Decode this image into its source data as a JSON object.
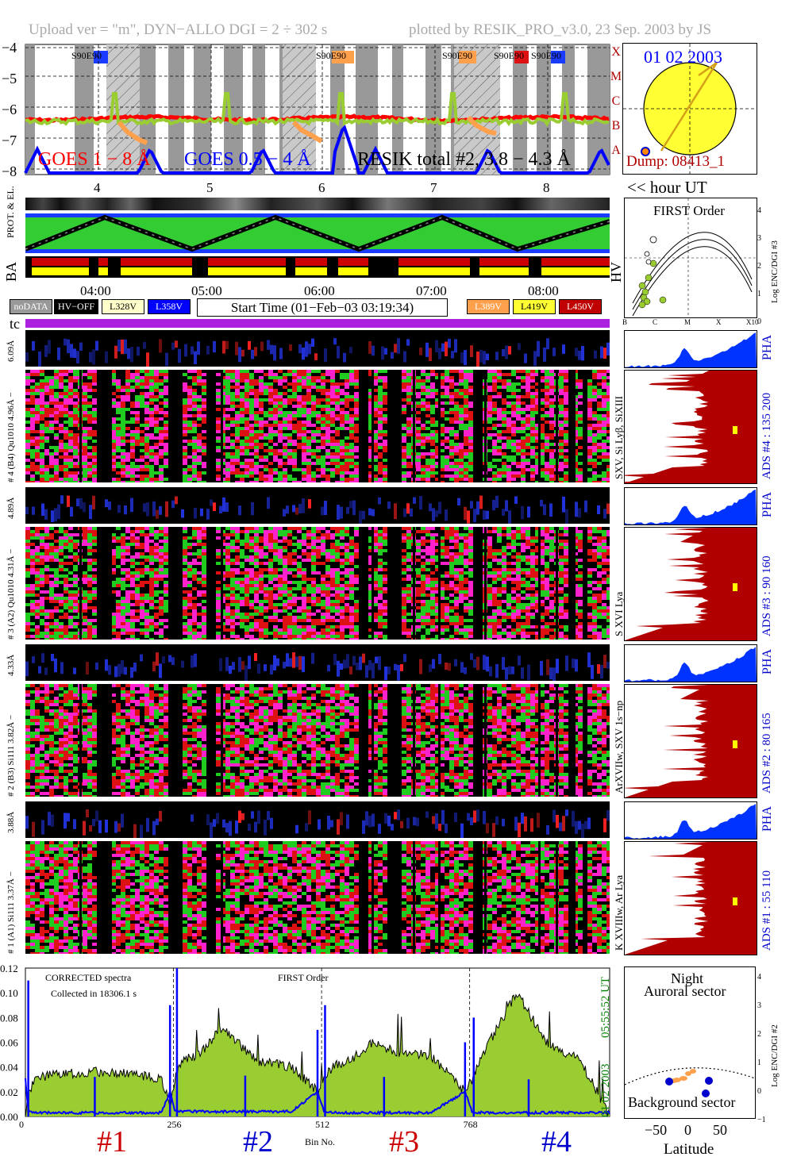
{
  "header": {
    "upload_text": "Upload ver = \"m\", DYN−ALLO DGI =   2 ÷ 302 s",
    "plotted_text": "plotted by RESIK_PRO_v3.0, 23 Sep. 2003 by JS"
  },
  "goes_panel": {
    "y_ticks": [
      "−4",
      "−5",
      "−6",
      "−7",
      "−8"
    ],
    "class_letters": [
      "X",
      "M",
      "C",
      "B",
      "A"
    ],
    "event_labels": [
      "S90E90",
      "S90E90",
      "S90E90",
      "S90E90",
      "S90E90"
    ],
    "legend_goes_long": "GOES 1 − 8 Å",
    "legend_goes_short": "GOES 0.5 − 4 Å",
    "legend_resik": "RESIK total #2, 3.8 − 4.3 Å",
    "hour_ticks": [
      "4",
      "5",
      "6",
      "7",
      "8"
    ],
    "hour_unit": "<< hour UT"
  },
  "sun_panel": {
    "date": "01 02 2003",
    "dump": "Dump: 08413_1"
  },
  "orbit_panel": {
    "label_prot": "PROT. & EL.",
    "label_ba": "BA",
    "label_hv": "HV",
    "time_ticks": [
      "04:00",
      "05:00",
      "06:00",
      "07:00",
      "08:00"
    ]
  },
  "legend_buttons": {
    "nodata": "noDATA",
    "hvoff": "HV−OFF",
    "l328": "L328V",
    "l358": "L358V",
    "start_time": "Start Time (01−Feb−03 03:19:34)",
    "l389": "L389V",
    "l419": "L419V",
    "l450": "L450V"
  },
  "first_order_panel": {
    "title": "FIRST Order",
    "y_label": "Log ENC/DGI #3",
    "y_ticks": [
      "4",
      "3",
      "2",
      "1",
      "0"
    ],
    "x_ticks": [
      "B",
      "C",
      "M",
      "X",
      "X10"
    ]
  },
  "tc_label": "tc",
  "detectors": [
    {
      "pha_label": "6.09Å",
      "spec_label": "# 4 (B4) Qu1010 4.96Å −",
      "lines_label": "SXV, Si Lyβ, SiXIII",
      "ads_label": "ADS #4 :  135 200",
      "pha_text": "PHA"
    },
    {
      "pha_label": "4.89Å",
      "spec_label": "# 3 (A2) Qu1010 4.31Å −",
      "lines_label": "S XVI Lya",
      "ads_label": "ADS #3 :  90 160",
      "pha_text": "PHA"
    },
    {
      "pha_label": "4.33Å",
      "spec_label": "# 2 (B3) Si111 3.82Å −",
      "lines_label": "ArXVIIw, SXV 1s−np",
      "ads_label": "ADS #2 :  80 165",
      "pha_text": "PHA"
    },
    {
      "pha_label": "3.88Å",
      "spec_label": "# 1 (A1) Si111 3.37Å −",
      "lines_label": "K XVIIIw, Ar Lya",
      "ads_label": "ADS #1 :  55 110",
      "pha_text": "PHA"
    }
  ],
  "bottom_spectrum": {
    "corrected": "CORRECTED spectra",
    "collected": "Collected in 18306.1 s",
    "first_order": "FIRST Order",
    "time_label": "05:55:52 UT",
    "date_label": "01 02 2003",
    "x_label": "Bin No.",
    "section_labels": [
      "#1",
      "#2",
      "#3",
      "#4"
    ]
  },
  "latitude_panel": {
    "night": "Night",
    "auroral": "Auroral sector",
    "background": "Background sector",
    "y_label": "Log ENC/DGI #2",
    "x_label": "Latitude",
    "x_ticks": [
      "−50",
      "0",
      "50"
    ],
    "y_ticks": [
      "4",
      "3",
      "2",
      "1",
      "0",
      "−1"
    ]
  },
  "colors": {
    "goes_long": "#ff0000",
    "goes_short": "#0000ff",
    "resik_total": "#9acd32",
    "sun": "#ffff33",
    "ads_fill": "#b00000",
    "pha_fill": "#0033ff",
    "tc_bar": "#aa22dd"
  },
  "chart_data": {
    "type": "line",
    "title": "",
    "xlabel": "Bin No.",
    "ylabel": "",
    "ylim": [
      0,
      0.12
    ],
    "x_ticks": [
      "0",
      "256",
      "512",
      "768"
    ],
    "y_ticks": [
      "0.00",
      "0.02",
      "0.04",
      "0.06",
      "0.08",
      "0.10",
      "0.12"
    ],
    "series": [],
    "approx_points": {
      "bin": [
        0,
        5,
        20,
        60,
        120,
        180,
        235,
        250,
        258,
        270,
        300,
        340,
        400,
        460,
        505,
        516,
        530,
        560,
        600,
        650,
        700,
        760,
        772,
        790,
        820,
        850,
        900,
        960,
        1010
      ],
      "spectrum": [
        0.0,
        0.02,
        0.032,
        0.034,
        0.036,
        0.035,
        0.03,
        0.01,
        0.03,
        0.045,
        0.05,
        0.072,
        0.045,
        0.04,
        0.02,
        0.03,
        0.04,
        0.045,
        0.06,
        0.05,
        0.05,
        0.02,
        0.03,
        0.05,
        0.075,
        0.1,
        0.06,
        0.045,
        0.0
      ],
      "background": [
        0.03,
        0.004,
        0.003,
        0.003,
        0.003,
        0.003,
        0.003,
        0.02,
        0.005,
        0.004,
        0.004,
        0.004,
        0.004,
        0.004,
        0.02,
        0.004,
        0.003,
        0.003,
        0.003,
        0.003,
        0.003,
        0.02,
        0.004,
        0.003,
        0.003,
        0.003,
        0.003,
        0.003,
        0.003
      ]
    }
  }
}
